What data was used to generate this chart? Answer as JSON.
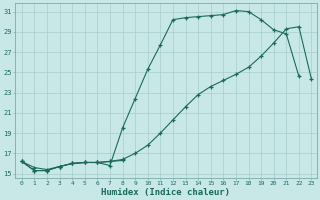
{
  "xlabel": "Humidex (Indice chaleur)",
  "bg_color": "#c8e8e8",
  "grid_color": "#a8cccc",
  "line_color": "#1a6a5a",
  "xlim_min": -0.5,
  "xlim_max": 23.4,
  "ylim_min": 14.6,
  "ylim_max": 31.8,
  "xticks": [
    0,
    1,
    2,
    3,
    4,
    5,
    6,
    7,
    8,
    9,
    10,
    11,
    12,
    13,
    14,
    15,
    16,
    17,
    18,
    19,
    20,
    21,
    22,
    23
  ],
  "yticks": [
    15,
    17,
    19,
    21,
    23,
    25,
    27,
    29,
    31
  ],
  "curve1_x": [
    0,
    1,
    2,
    3,
    4,
    5,
    6,
    7,
    8,
    9,
    10,
    11,
    12,
    13,
    14,
    15,
    16,
    17,
    18,
    19,
    20,
    21,
    22
  ],
  "curve1_y": [
    16.2,
    15.3,
    15.3,
    15.7,
    16.0,
    16.1,
    16.1,
    15.8,
    19.5,
    22.4,
    25.3,
    27.7,
    30.2,
    30.4,
    30.5,
    30.6,
    30.7,
    31.1,
    31.0,
    30.2,
    29.2,
    28.8,
    24.6
  ],
  "curve2_x": [
    0,
    1,
    2,
    3,
    4,
    5,
    6,
    7,
    8
  ],
  "curve2_y": [
    16.2,
    15.3,
    15.3,
    15.7,
    16.0,
    16.1,
    16.1,
    16.2,
    16.3
  ],
  "curve3_x": [
    0,
    1,
    2,
    3,
    4,
    5,
    6,
    7,
    8,
    9,
    10,
    11,
    12,
    13,
    14,
    15,
    16,
    17,
    18,
    19,
    20,
    21,
    22,
    23
  ],
  "curve3_y": [
    16.2,
    15.6,
    15.4,
    15.7,
    16.0,
    16.1,
    16.1,
    16.2,
    16.4,
    17.0,
    17.8,
    19.0,
    20.3,
    21.6,
    22.8,
    23.6,
    24.2,
    24.8,
    25.5,
    26.6,
    27.9,
    29.3,
    29.5,
    24.3
  ]
}
